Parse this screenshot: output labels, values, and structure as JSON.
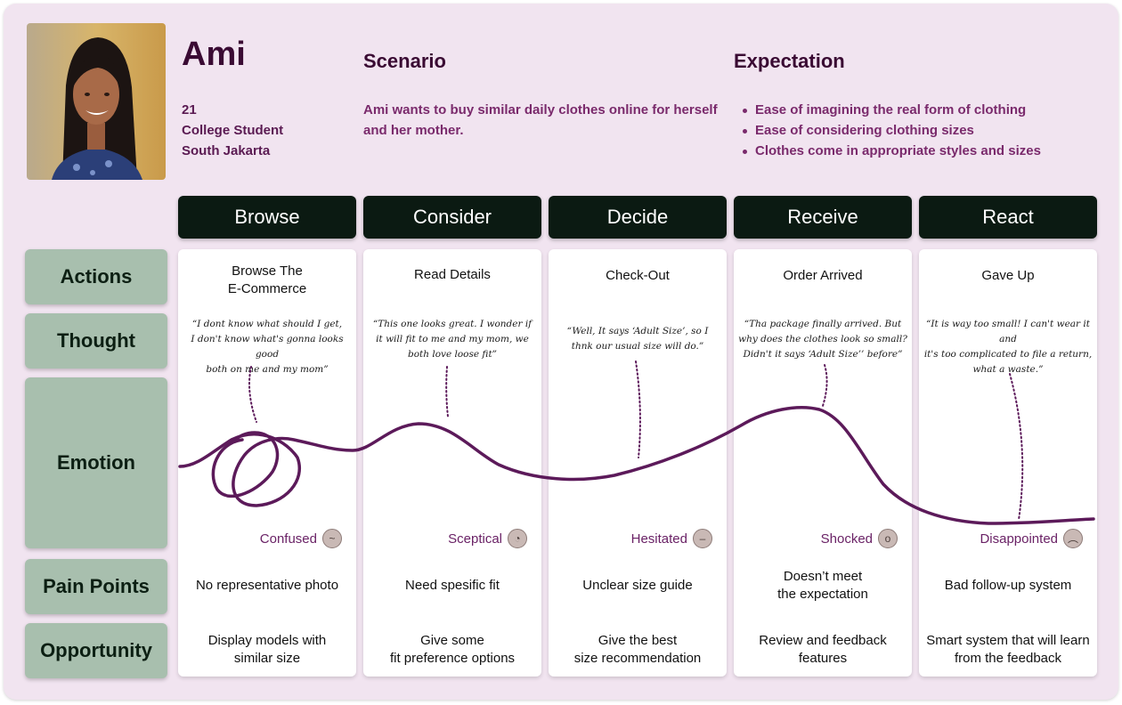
{
  "persona": {
    "name": "Ami",
    "age": "21",
    "occupation": "College Student",
    "location": "South Jakarta"
  },
  "scenario": {
    "title": "Scenario",
    "text": "Ami wants to buy similar daily clothes online for herself and her mother."
  },
  "expectation": {
    "title": "Expectation",
    "items": [
      "Ease of imagining the real form of clothing",
      "Ease of considering clothing sizes",
      "Clothes come in appropriate styles and sizes"
    ]
  },
  "row_labels": {
    "actions": "Actions",
    "thought": "Thought",
    "emotion": "Emotion",
    "pain_points": "Pain Points",
    "opportunity": "Opportunity"
  },
  "stages": [
    {
      "name": "Browse",
      "action_line1": "Browse The",
      "action_line2": "E-Commerce",
      "thought_line1": "“I dont know what should I get,",
      "thought_line2": "I don't know what's gonna looks good",
      "thought_line3": "both on me and my mom”",
      "emotion": "Confused",
      "emotion_icon": "confused-face-icon",
      "pain_line1": "No representative photo",
      "pain_line2": "",
      "opp_line1": "Display models with",
      "opp_line2": "similar size"
    },
    {
      "name": "Consider",
      "action_line1": "Read Details",
      "action_line2": "",
      "thought_line1": "“This one looks great. I wonder if",
      "thought_line2": "it will fit to me and my mom, we",
      "thought_line3": "both love loose fit”",
      "emotion": "Sceptical",
      "emotion_icon": "sceptical-face-icon",
      "pain_line1": "Need spesific fit",
      "pain_line2": "",
      "opp_line1": "Give some",
      "opp_line2": "fit preference options"
    },
    {
      "name": "Decide",
      "action_line1": "Check-Out",
      "action_line2": "",
      "thought_line1": "“Well, It says ‘Adult Size’, so I",
      "thought_line2": "thnk our usual size will do.”",
      "thought_line3": "",
      "emotion": "Hesitated",
      "emotion_icon": "hesitated-face-icon",
      "pain_line1": "Unclear size guide",
      "pain_line2": "",
      "opp_line1": "Give the best",
      "opp_line2": "size recommendation"
    },
    {
      "name": "Receive",
      "action_line1": "Order Arrived",
      "action_line2": "",
      "thought_line1": "“Tha package finally arrived. But",
      "thought_line2": "why does the clothes look so small?",
      "thought_line3": "Didn't it says ‘Adult Size’’ before”",
      "emotion": "Shocked",
      "emotion_icon": "shocked-face-icon",
      "pain_line1": "Doesn’t meet",
      "pain_line2": "the expectation",
      "opp_line1": "Review and feedback",
      "opp_line2": "features"
    },
    {
      "name": "React",
      "action_line1": "Gave Up",
      "action_line2": "",
      "thought_line1": "“It is way too small! I can't wear it and",
      "thought_line2": "it's too complicated to file a return,",
      "thought_line3": "what a waste.”",
      "emotion": "Disappointed",
      "emotion_icon": "disappointed-face-icon",
      "pain_line1": "Bad follow-up system",
      "pain_line2": "",
      "opp_line1": "Smart system that will learn",
      "opp_line2": "from the feedback"
    }
  ],
  "colors": {
    "background": "#f1e4f0",
    "stage_header": "#0b1a12",
    "row_label": "#a8bfae",
    "emotion_curve": "#5c1a5a",
    "accent_text": "#7a2a6c"
  }
}
